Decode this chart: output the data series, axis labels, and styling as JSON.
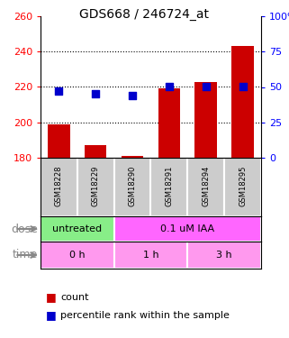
{
  "title": "GDS668 / 246724_at",
  "samples": [
    "GSM18228",
    "GSM18229",
    "GSM18290",
    "GSM18291",
    "GSM18294",
    "GSM18295"
  ],
  "counts": [
    199,
    187,
    181,
    219,
    223,
    243
  ],
  "percentile_ranks": [
    47,
    45,
    44,
    50,
    50,
    50
  ],
  "ymin": 180,
  "ymax": 260,
  "yticks": [
    180,
    200,
    220,
    240,
    260
  ],
  "y2min": 0,
  "y2max": 100,
  "y2ticks": [
    0,
    25,
    50,
    75,
    100
  ],
  "bar_color": "#cc0000",
  "dot_color": "#0000cc",
  "dose_groups": [
    {
      "label": "untreated",
      "start": 0,
      "end": 2,
      "color": "#88ee88"
    },
    {
      "label": "0.1 uM IAA",
      "start": 2,
      "end": 6,
      "color": "#ff66ff"
    }
  ],
  "time_groups": [
    {
      "label": "0 h",
      "start": 0,
      "end": 2,
      "color": "#ff99ee"
    },
    {
      "label": "1 h",
      "start": 2,
      "end": 4,
      "color": "#ff99ee"
    },
    {
      "label": "3 h",
      "start": 4,
      "end": 6,
      "color": "#ff99ee"
    }
  ],
  "dose_label": "dose",
  "time_label": "time",
  "legend_count": "count",
  "legend_pct": "percentile rank within the sample",
  "sample_bg": "#cccccc",
  "dot_size": 35
}
